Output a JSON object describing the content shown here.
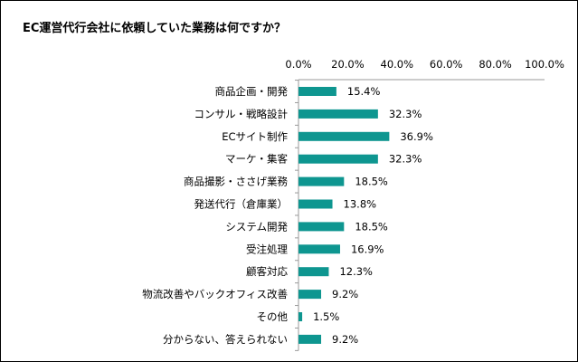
{
  "chart_data": {
    "type": "bar",
    "orientation": "horizontal",
    "title": "EC運営代行会社に依頼していた業務は何ですか？",
    "categories": [
      "商品企画・開発",
      "コンサル・戦略設計",
      "ECサイト制作",
      "マーケ・集客",
      "商品撮影・ささげ業務",
      "発送代行（倉庫業）",
      "システム開発",
      "受注処理",
      "顧客対応",
      "物流改善やバックオフィス改善",
      "その他",
      "分からない、答えられない"
    ],
    "values": [
      15.4,
      32.3,
      36.9,
      32.3,
      18.5,
      13.8,
      18.5,
      16.9,
      12.3,
      9.2,
      1.5,
      9.2
    ],
    "value_labels": [
      "15.4%",
      "32.3%",
      "36.9%",
      "32.3%",
      "18.5%",
      "13.8%",
      "18.5%",
      "16.9%",
      "12.3%",
      "9.2%",
      "1.5%",
      "9.2%"
    ],
    "xlim": [
      0,
      100
    ],
    "x_ticks": [
      "0.0%",
      "20.0%",
      "40.0%",
      "60.0%",
      "80.0%",
      "100.0%"
    ],
    "x_axis_position": "top",
    "grid": false,
    "bar_color": "#0e9690"
  }
}
